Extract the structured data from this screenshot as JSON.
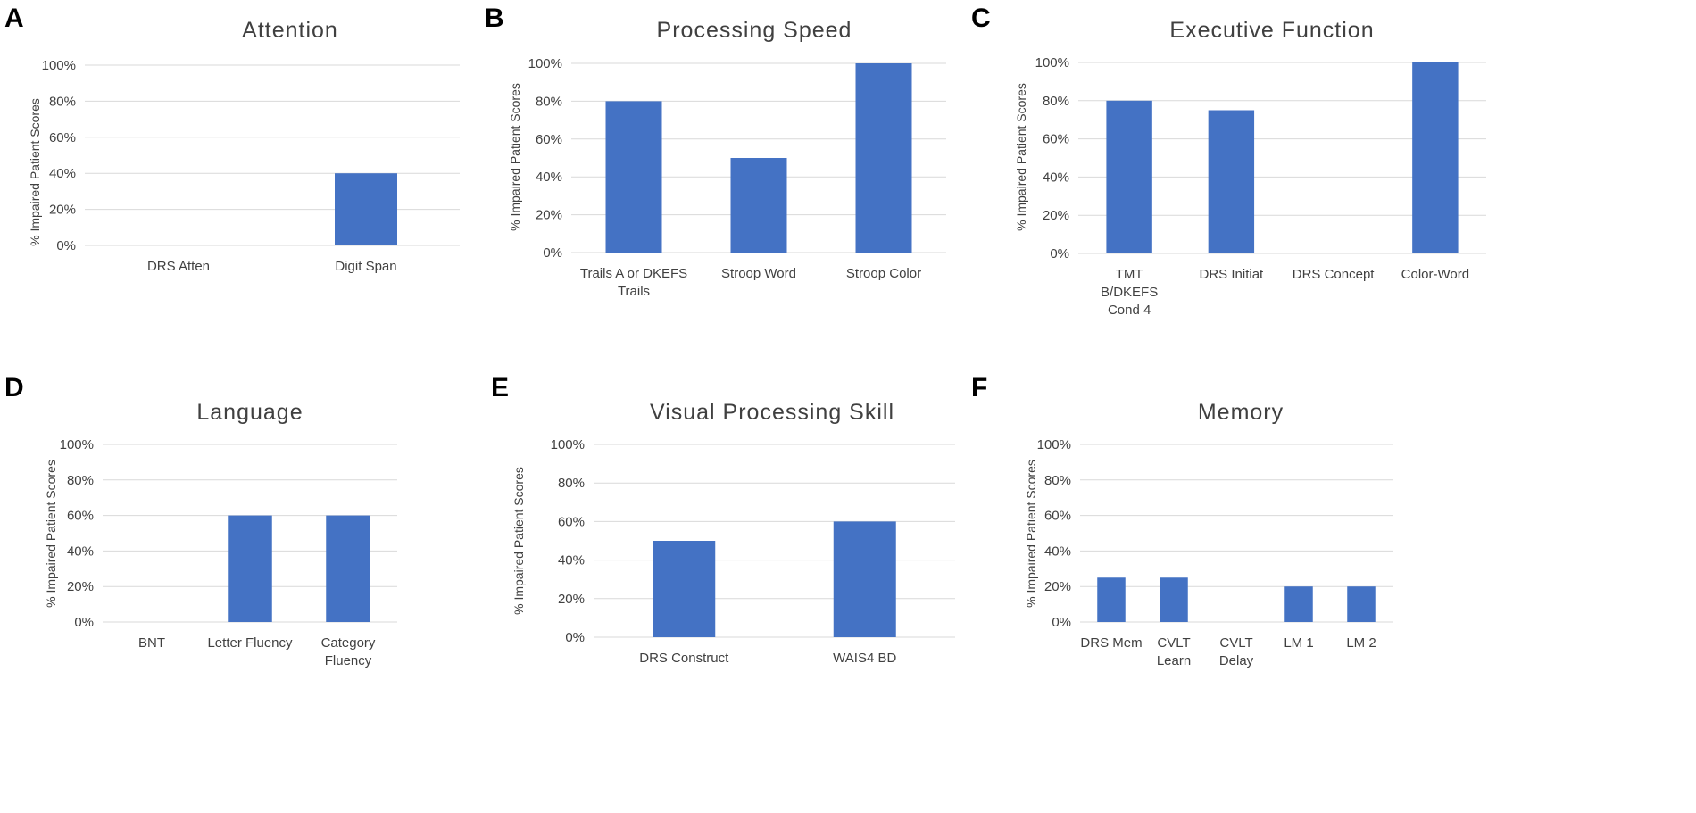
{
  "chart_data": [
    {
      "panel": "A",
      "type": "bar",
      "title": "Attention",
      "ylabel": "% Impaired Patient Scores",
      "ylim": [
        0,
        100
      ],
      "yticks": [
        "0%",
        "20%",
        "40%",
        "60%",
        "80%",
        "100%"
      ],
      "categories": [
        [
          "DRS Atten"
        ],
        [
          "Digit Span"
        ]
      ],
      "values": [
        0,
        40
      ],
      "color": "#4472c4"
    },
    {
      "panel": "B",
      "type": "bar",
      "title": "Processing Speed",
      "ylabel": "% Impaired Patient Scores",
      "ylim": [
        0,
        100
      ],
      "yticks": [
        "0%",
        "20%",
        "40%",
        "60%",
        "80%",
        "100%"
      ],
      "categories": [
        [
          "Trails A or DKEFS",
          "Trails"
        ],
        [
          "Stroop Word"
        ],
        [
          "Stroop Color"
        ]
      ],
      "values": [
        80,
        50,
        100
      ],
      "color": "#4472c4"
    },
    {
      "panel": "C",
      "type": "bar",
      "title": "Executive Function",
      "ylabel": "% Impaired Patient Scores",
      "ylim": [
        0,
        100
      ],
      "yticks": [
        "0%",
        "20%",
        "40%",
        "60%",
        "80%",
        "100%"
      ],
      "categories": [
        [
          "TMT",
          "B/DKEFS",
          "Cond 4"
        ],
        [
          "DRS Initiat"
        ],
        [
          "DRS Concept"
        ],
        [
          "Color-Word"
        ]
      ],
      "values": [
        80,
        75,
        0,
        100
      ],
      "color": "#4472c4"
    },
    {
      "panel": "D",
      "type": "bar",
      "title": "Language",
      "ylabel": "% Impaired Patient Scores",
      "ylim": [
        0,
        100
      ],
      "yticks": [
        "0%",
        "20%",
        "40%",
        "60%",
        "80%",
        "100%"
      ],
      "categories": [
        [
          "BNT"
        ],
        [
          "Letter Fluency"
        ],
        [
          "Category",
          "Fluency"
        ]
      ],
      "values": [
        0,
        60,
        60
      ],
      "color": "#4472c4"
    },
    {
      "panel": "E",
      "type": "bar",
      "title": "Visual Processing Skill",
      "ylabel": "% Impaired Patient Scores",
      "ylim": [
        0,
        100
      ],
      "yticks": [
        "0%",
        "20%",
        "40%",
        "60%",
        "80%",
        "100%"
      ],
      "categories": [
        [
          "DRS Construct"
        ],
        [
          "WAIS4 BD"
        ]
      ],
      "values": [
        50,
        60
      ],
      "color": "#4472c4"
    },
    {
      "panel": "F",
      "type": "bar",
      "title": "Memory",
      "ylabel": "% Impaired Patient Scores",
      "ylim": [
        0,
        100
      ],
      "yticks": [
        "0%",
        "20%",
        "40%",
        "60%",
        "80%",
        "100%"
      ],
      "categories": [
        [
          "DRS Mem"
        ],
        [
          "CVLT",
          "Learn"
        ],
        [
          "CVLT",
          "Delay"
        ],
        [
          "LM 1"
        ],
        [
          "LM 2"
        ]
      ],
      "values": [
        25,
        25,
        0,
        20,
        20
      ],
      "color": "#4472c4"
    }
  ]
}
